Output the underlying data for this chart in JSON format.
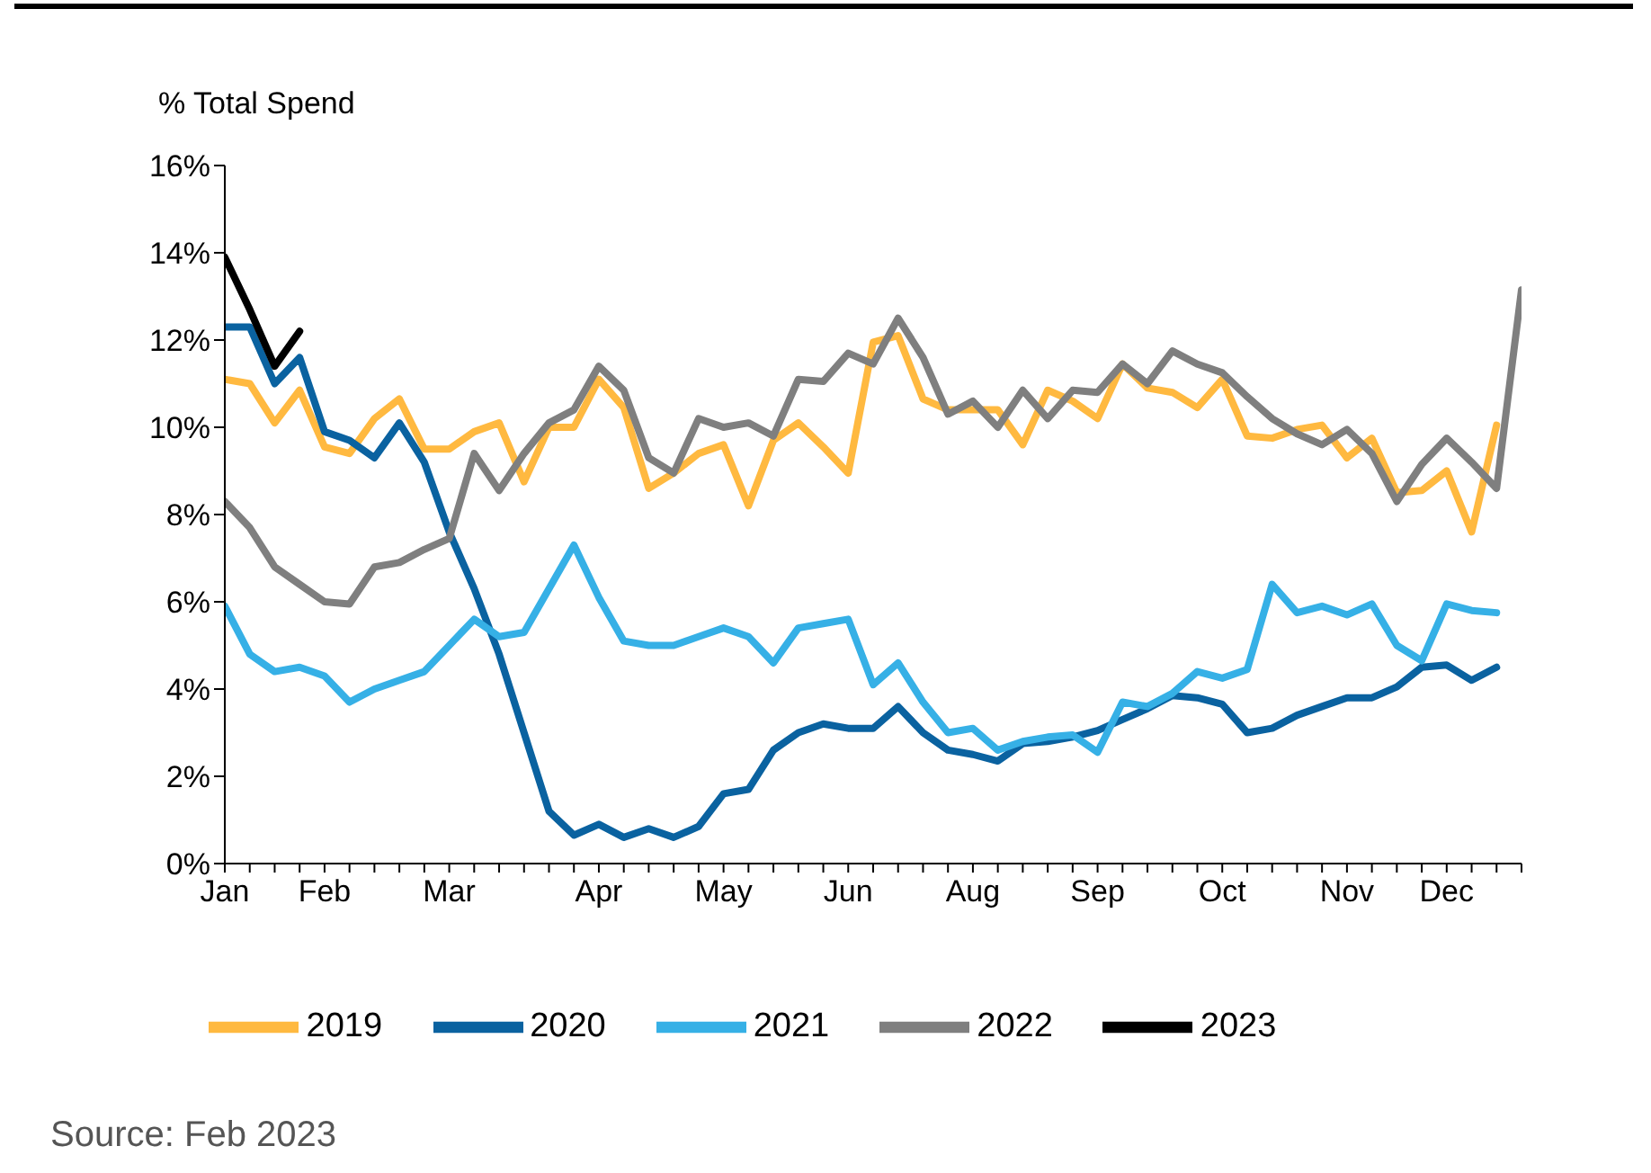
{
  "chart_data": {
    "type": "line",
    "ylabel": "% Total Spend",
    "annotations": [
      "Source: Feb 2023"
    ],
    "categories": [
      "Jan",
      null,
      null,
      null,
      "Feb",
      null,
      null,
      null,
      null,
      "Mar",
      null,
      null,
      null,
      null,
      null,
      "Apr",
      null,
      null,
      null,
      null,
      "May",
      null,
      null,
      null,
      null,
      "Jun",
      null,
      null,
      null,
      null,
      "Aug",
      null,
      null,
      null,
      null,
      "Sep",
      null,
      null,
      null,
      null,
      "Oct",
      null,
      null,
      null,
      null,
      "Nov",
      null,
      null,
      null,
      "Dec",
      null,
      null,
      null
    ],
    "ylim": [
      0,
      16
    ],
    "yticks": [
      {
        "value": 0,
        "label": "0%"
      },
      {
        "value": 2,
        "label": "2%"
      },
      {
        "value": 4,
        "label": "4%"
      },
      {
        "value": 6,
        "label": "6%"
      },
      {
        "value": 8,
        "label": "8%"
      },
      {
        "value": 10,
        "label": "10%"
      },
      {
        "value": 12,
        "label": "12%"
      },
      {
        "value": 14,
        "label": "14%"
      },
      {
        "value": 16,
        "label": "16%"
      }
    ],
    "grid": false,
    "legend": "bottom",
    "marker": "none",
    "line_style": "solid",
    "series": [
      {
        "name": "2019",
        "color": "#ffb940",
        "values": [
          11.1,
          11.0,
          10.1,
          10.85,
          9.55,
          9.4,
          10.2,
          10.65,
          9.5,
          9.5,
          9.9,
          10.1,
          8.75,
          10.0,
          10.0,
          11.1,
          10.45,
          8.6,
          8.95,
          9.4,
          9.6,
          8.2,
          9.7,
          10.1,
          9.55,
          8.95,
          11.95,
          12.1,
          10.65,
          10.4,
          10.4,
          10.4,
          9.6,
          10.85,
          10.6,
          10.2,
          11.45,
          10.9,
          10.8,
          10.45,
          11.1,
          9.8,
          9.75,
          9.95,
          10.05,
          9.3,
          9.75,
          8.5,
          8.55,
          9.0,
          7.6,
          10.05,
          null
        ]
      },
      {
        "name": "2020",
        "color": "#0a62a0",
        "values": [
          12.3,
          12.3,
          11.0,
          11.6,
          9.9,
          9.7,
          9.3,
          10.1,
          9.2,
          7.6,
          6.3,
          4.8,
          3.0,
          1.2,
          0.65,
          0.9,
          0.6,
          0.8,
          0.6,
          0.85,
          1.6,
          1.7,
          2.6,
          3.0,
          3.2,
          3.1,
          3.1,
          3.6,
          3.0,
          2.6,
          2.5,
          2.35,
          2.75,
          2.8,
          2.9,
          3.05,
          3.3,
          3.55,
          3.85,
          3.8,
          3.65,
          3.0,
          3.1,
          3.4,
          3.6,
          3.8,
          3.8,
          4.05,
          4.5,
          4.55,
          4.2,
          4.5,
          null
        ]
      },
      {
        "name": "2021",
        "color": "#36b0e6",
        "values": [
          5.9,
          4.8,
          4.4,
          4.5,
          4.3,
          3.7,
          4.0,
          4.2,
          4.4,
          5.0,
          5.6,
          5.2,
          5.3,
          6.3,
          7.3,
          6.1,
          5.1,
          5.0,
          5.0,
          5.2,
          5.4,
          5.2,
          4.6,
          5.4,
          5.5,
          5.6,
          4.1,
          4.6,
          3.7,
          3.0,
          3.1,
          2.6,
          2.8,
          2.9,
          2.95,
          2.55,
          3.7,
          3.6,
          3.9,
          4.4,
          4.25,
          4.45,
          6.4,
          5.75,
          5.9,
          5.7,
          5.95,
          5.0,
          4.65,
          5.95,
          5.8,
          5.75,
          null
        ]
      },
      {
        "name": "2022",
        "color": "#7f7f7f",
        "values": [
          8.3,
          7.7,
          6.8,
          6.4,
          6.0,
          5.95,
          6.8,
          6.9,
          7.2,
          7.45,
          9.4,
          8.55,
          9.4,
          10.1,
          10.4,
          11.4,
          10.85,
          9.3,
          8.95,
          10.2,
          10.0,
          10.1,
          9.8,
          11.1,
          11.05,
          11.7,
          11.45,
          12.5,
          11.6,
          10.3,
          10.6,
          10.0,
          10.85,
          10.2,
          10.85,
          10.8,
          11.45,
          11.0,
          11.75,
          11.45,
          11.25,
          10.7,
          10.2,
          9.85,
          9.6,
          9.95,
          9.4,
          8.3,
          9.15,
          9.75,
          9.2,
          8.6,
          13.15
        ]
      },
      {
        "name": "2023",
        "color": "#000000",
        "values": [
          13.9,
          12.7,
          11.4,
          12.2,
          null,
          null,
          null,
          null,
          null,
          null,
          null,
          null,
          null,
          null,
          null,
          null,
          null,
          null,
          null,
          null,
          null,
          null,
          null,
          null,
          null,
          null,
          null,
          null,
          null,
          null,
          null,
          null,
          null,
          null,
          null,
          null,
          null,
          null,
          null,
          null,
          null,
          null,
          null,
          null,
          null,
          null,
          null,
          null,
          null,
          null,
          null,
          null,
          null
        ]
      }
    ]
  }
}
